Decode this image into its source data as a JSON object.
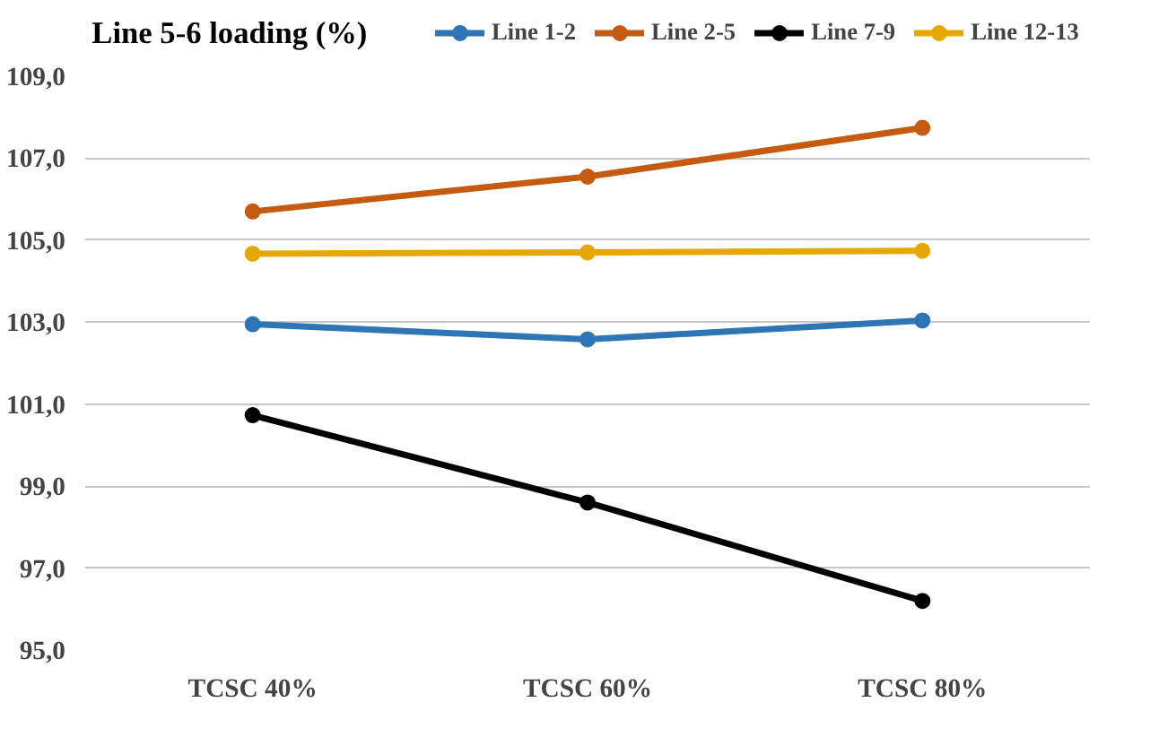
{
  "chart_data": {
    "type": "line",
    "title": "Line 5-6 loading (%)",
    "categories": [
      "TCSC 40%",
      "TCSC 60%",
      "TCSC 80%"
    ],
    "series": [
      {
        "name": "Line 1-2",
        "color": "#2e75b6",
        "values": [
          102.95,
          102.58,
          103.04
        ]
      },
      {
        "name": "Line 2-5",
        "color": "#c55a11",
        "values": [
          105.7,
          106.55,
          107.74
        ]
      },
      {
        "name": "Line 7-9",
        "color": "#000000",
        "values": [
          100.73,
          98.6,
          96.2
        ]
      },
      {
        "name": "Line 12-13",
        "color": "#e6a800",
        "values": [
          104.67,
          104.7,
          104.74
        ]
      }
    ],
    "ylim": [
      95,
      109
    ],
    "yticks": [
      {
        "value": 95,
        "label": "95,0"
      },
      {
        "value": 97,
        "label": "97,0"
      },
      {
        "value": 99,
        "label": "99,0"
      },
      {
        "value": 101,
        "label": "101,0"
      },
      {
        "value": 103,
        "label": "103,0"
      },
      {
        "value": 105,
        "label": "105,0"
      },
      {
        "value": 107,
        "label": "107,0"
      },
      {
        "value": 109,
        "label": "109,0"
      }
    ],
    "grid": "y",
    "legend": "top",
    "marker": "circle",
    "line_style": "solid"
  }
}
